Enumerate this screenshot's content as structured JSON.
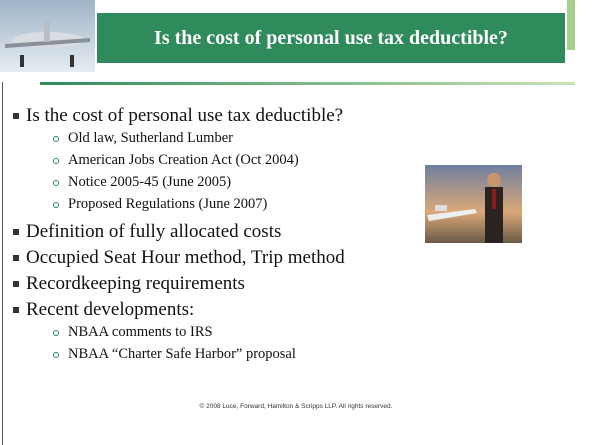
{
  "header": {
    "title": "Is the cost of personal use tax deductible?"
  },
  "bullets": [
    {
      "text": "Is the cost of personal use tax deductible?",
      "sub": [
        "Old law, Sutherland Lumber",
        "American Jobs Creation Act (Oct 2004)",
        "Notice 2005-45 (June 2005)",
        "Proposed Regulations (June 2007)"
      ]
    },
    {
      "text": "Definition of fully allocated costs",
      "sub": []
    },
    {
      "text": "Occupied Seat Hour method, Trip method",
      "sub": []
    },
    {
      "text": "Recordkeeping requirements",
      "sub": []
    },
    {
      "text": "Recent developments:",
      "sub": [
        "NBAA comments to IRS",
        "NBAA “Charter Safe Harbor” proposal"
      ]
    }
  ],
  "footer": "© 2008 Luce, Forward, Hamilton & Scripps LLP. All rights reserved."
}
